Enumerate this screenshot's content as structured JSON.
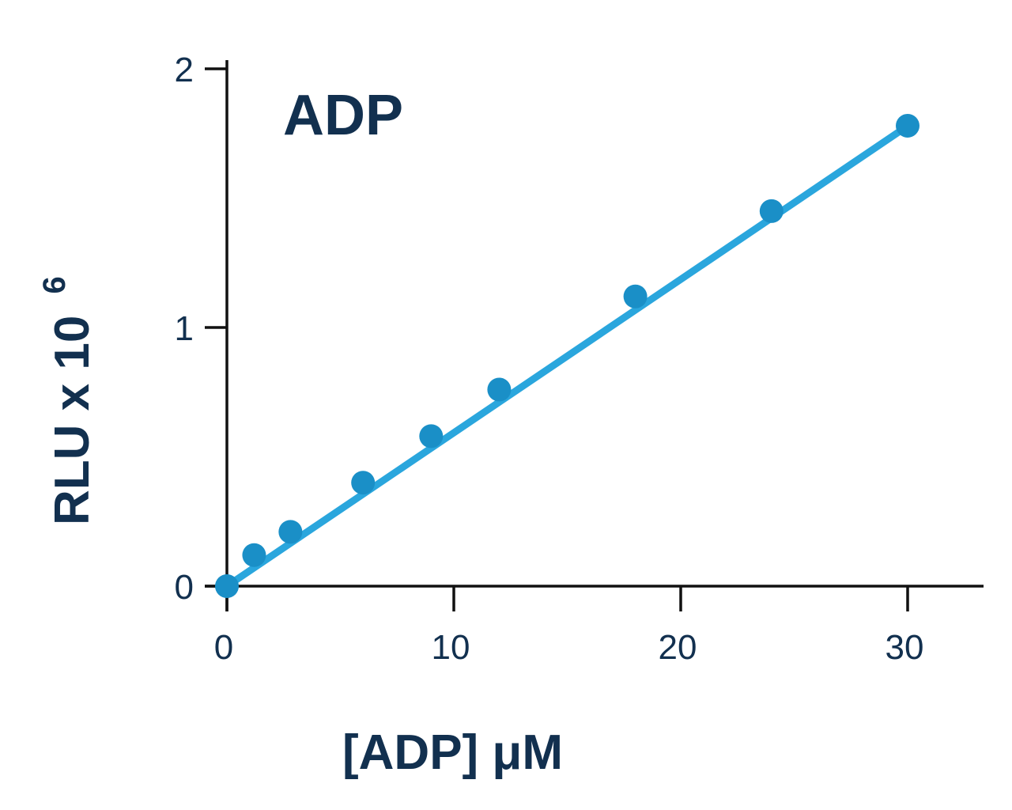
{
  "chart_data": {
    "type": "scatter",
    "title": "ADP",
    "xlabel": "[ADP] μM",
    "ylabel": "RLU x 10",
    "ylabel_exponent": "6",
    "xlim": [
      0,
      33
    ],
    "ylim": [
      0,
      2
    ],
    "x_ticks": [
      0,
      10,
      20,
      30
    ],
    "x_tick_labels": [
      "0",
      "10",
      "20",
      "30"
    ],
    "y_ticks": [
      0,
      1,
      2
    ],
    "y_tick_labels": [
      "0",
      "1",
      "2"
    ],
    "grid": false,
    "legend": "none",
    "series": [
      {
        "x": [
          0,
          1.2,
          2.8,
          6,
          9,
          12,
          18,
          24,
          30
        ],
        "y": [
          0,
          0.12,
          0.21,
          0.4,
          0.58,
          0.76,
          1.12,
          1.45,
          1.78
        ],
        "fit": {
          "type": "linear",
          "slope": 0.0593,
          "intercept": 0
        }
      }
    ],
    "colors": {
      "text": "#12304f",
      "axis": "#111111",
      "fit_line": "#2aa6dd",
      "points": "#1a8fc7"
    }
  }
}
